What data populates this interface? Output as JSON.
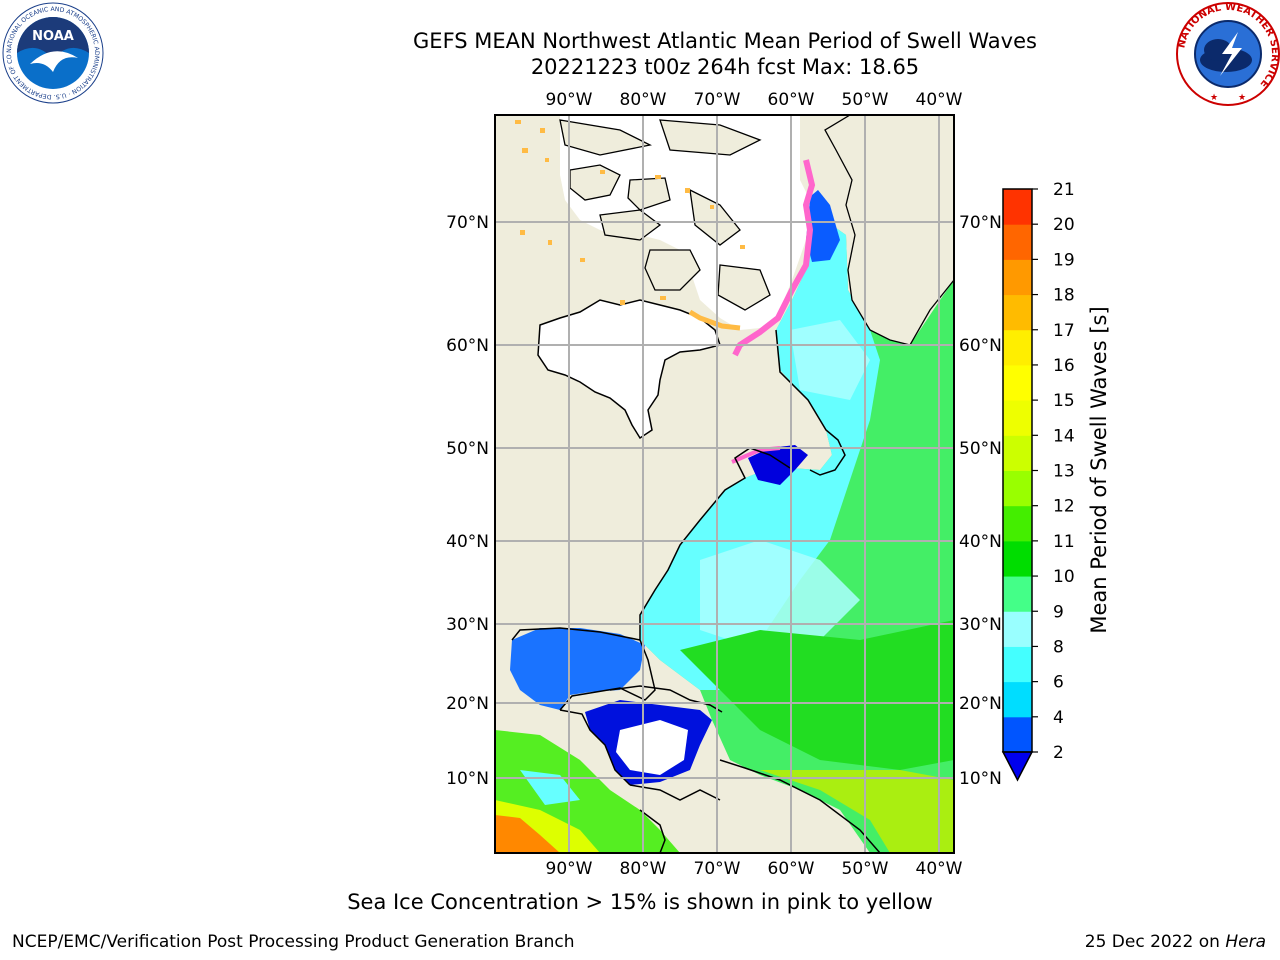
{
  "header": {
    "title_line1": "GEFS MEAN Northwest Atlantic Mean Period of Swell Waves",
    "title_line2": "20221223 t00z 264h fcst   Max: 18.65"
  },
  "logos": {
    "noaa_text": "NOAA",
    "noaa_ring_text": "NATIONAL OCEANIC AND ATMOSPHERIC ADMINISTRATION · U.S. DEPARTMENT OF COMMERCE",
    "nws_ring_text": "NATIONAL WEATHER SERVICE"
  },
  "map": {
    "lon_labels": [
      "90°W",
      "80°W",
      "70°W",
      "60°W",
      "50°W",
      "40°W"
    ],
    "lat_labels": [
      "70°N",
      "60°N",
      "50°N",
      "40°N",
      "30°N",
      "20°N",
      "10°N"
    ],
    "colors": {
      "land": "#efeddc",
      "ice_pink": "#ff66cc",
      "ice_orange": "#ffbb44",
      "grid": "#b0b0b0"
    }
  },
  "colorbar": {
    "label": "Mean Period of Swell Waves [s]",
    "ticks": [
      "2",
      "4",
      "6",
      "8",
      "9",
      "10",
      "11",
      "12",
      "13",
      "14",
      "15",
      "16",
      "17",
      "18",
      "19",
      "20",
      "21"
    ],
    "colors": [
      "#0055ff",
      "#00ddff",
      "#44ffff",
      "#99ffff",
      "#44ff88",
      "#00dd00",
      "#44ee00",
      "#99ff00",
      "#ccff00",
      "#eeff00",
      "#ffff00",
      "#ffee00",
      "#ffbb00",
      "#ff9900",
      "#ff6600",
      "#ff3300",
      "#ff0000"
    ],
    "under_color": "#0000ee"
  },
  "footer": {
    "note": "Sea Ice Concentration > 15% is shown in pink to yellow",
    "credit_left": "NCEP/EMC/Verification Post Processing Product Generation Branch",
    "date": "25 Dec 2022 on",
    "machine": "Hera"
  }
}
